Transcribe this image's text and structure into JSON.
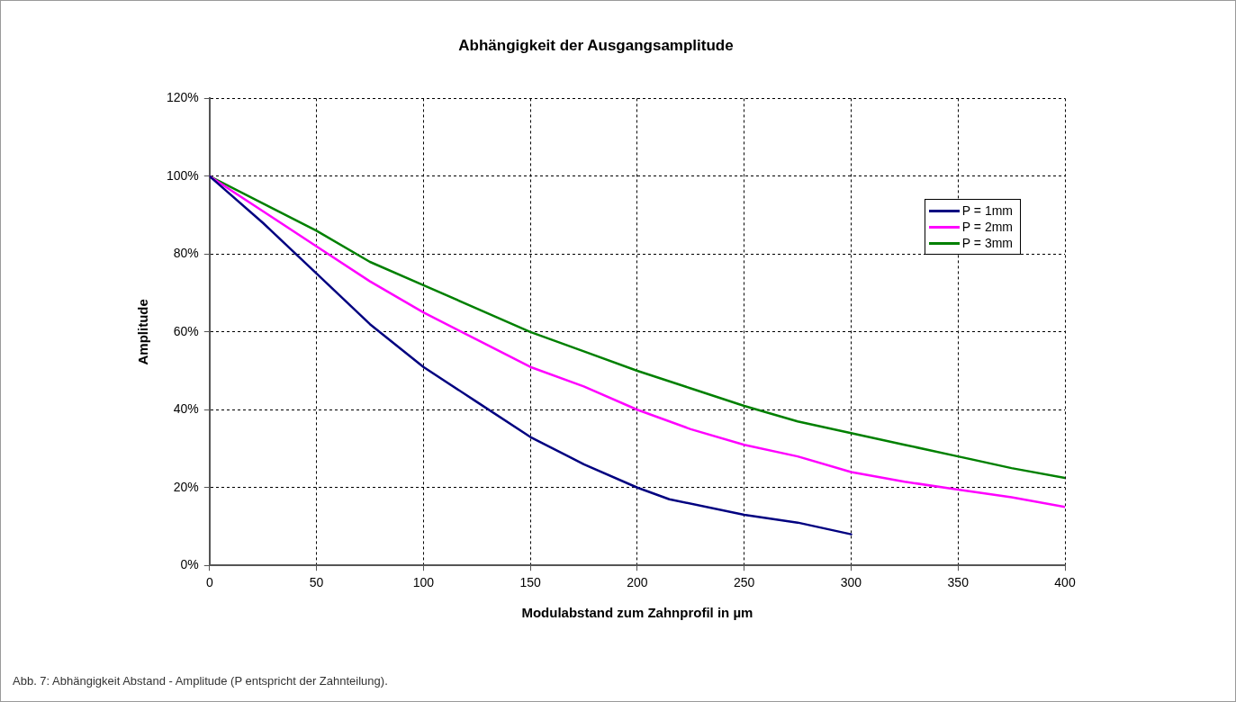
{
  "chart_data": {
    "type": "line",
    "title": "Abhängigkeit der Ausgangsamplitude",
    "xlabel": "Modulabstand zum Zahnprofil in µm",
    "ylabel": "Amplitude",
    "series": [
      {
        "name": "P = 1mm",
        "color": "#000080",
        "x": [
          0,
          25,
          50,
          75,
          100,
          125,
          150,
          175,
          200,
          215,
          250,
          275,
          300
        ],
        "values": [
          100,
          88,
          75,
          62,
          51,
          42,
          33,
          26,
          20,
          17,
          13,
          11,
          8
        ]
      },
      {
        "name": "P = 2mm",
        "color": "#ff00ff",
        "x": [
          0,
          25,
          50,
          75,
          100,
          125,
          150,
          175,
          200,
          225,
          250,
          275,
          300,
          325,
          350,
          375,
          400
        ],
        "values": [
          100,
          91,
          82,
          73,
          65,
          58,
          51,
          46,
          40,
          35,
          31,
          28,
          24,
          21.5,
          19.5,
          17.5,
          15
        ]
      },
      {
        "name": "P = 3mm",
        "color": "#008000",
        "x": [
          0,
          25,
          50,
          75,
          100,
          125,
          150,
          175,
          200,
          225,
          250,
          275,
          300,
          325,
          350,
          375,
          400
        ],
        "values": [
          100,
          93,
          86,
          78,
          72,
          66,
          60,
          55,
          50,
          45.5,
          41,
          37,
          34,
          31,
          28,
          25,
          22.5
        ]
      }
    ],
    "xlim": [
      0,
      400
    ],
    "xticks": [
      0,
      50,
      100,
      150,
      200,
      250,
      300,
      350,
      400
    ],
    "ylim": [
      0,
      120
    ],
    "yticks": [
      {
        "value": 0,
        "label": "0%"
      },
      {
        "value": 20,
        "label": "20%"
      },
      {
        "value": 40,
        "label": "40%"
      },
      {
        "value": 60,
        "label": "60%"
      },
      {
        "value": 80,
        "label": "80%"
      },
      {
        "value": 100,
        "label": "100%"
      },
      {
        "value": 120,
        "label": "120%"
      }
    ],
    "grid": true,
    "legend": "top right",
    "marker": "none",
    "line_style": "solid",
    "annotations": [
      "Abb. 7: Abhängigkeit Abstand - Amplitude (P entspricht der Zahnteilung)."
    ]
  }
}
